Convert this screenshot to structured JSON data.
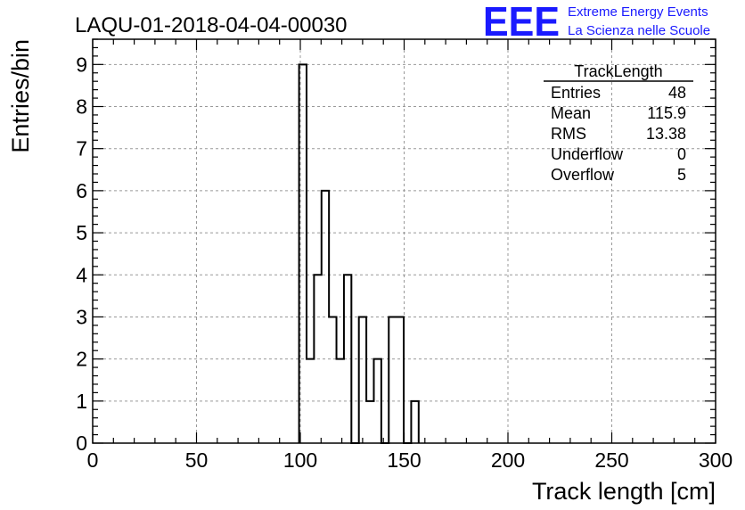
{
  "header": {
    "run_title": "LAQU-01-2018-04-04-00030",
    "logo_text": "EEE",
    "logo_line1": "Extreme Energy Events",
    "logo_line2": "La Scienza nelle Scuole",
    "brand_color": "#1a1aff"
  },
  "stats_box": {
    "title": "TrackLength",
    "rows": [
      {
        "label": "Entries",
        "value": "48"
      },
      {
        "label": "Mean",
        "value": "115.9"
      },
      {
        "label": "RMS",
        "value": "13.38"
      },
      {
        "label": "Underflow",
        "value": "0"
      },
      {
        "label": "Overflow",
        "value": "5"
      }
    ]
  },
  "chart_data": {
    "type": "bar",
    "histogram": true,
    "xlabel": "Track length [cm]",
    "ylabel": "Entries/bin",
    "xlim": [
      0,
      300
    ],
    "ylim": [
      0,
      9.6
    ],
    "grid": true,
    "x_ticks": [
      0,
      50,
      100,
      150,
      200,
      250,
      300
    ],
    "y_ticks": [
      0,
      1,
      2,
      3,
      4,
      5,
      6,
      7,
      8,
      9
    ],
    "bin_width": 3.6,
    "bins": [
      {
        "x0": 99.4,
        "x1": 103.0,
        "value": 9
      },
      {
        "x0": 103.0,
        "x1": 106.6,
        "value": 2
      },
      {
        "x0": 106.6,
        "x1": 110.2,
        "value": 4
      },
      {
        "x0": 110.2,
        "x1": 113.8,
        "value": 6
      },
      {
        "x0": 113.8,
        "x1": 117.4,
        "value": 3
      },
      {
        "x0": 117.4,
        "x1": 121.0,
        "value": 2
      },
      {
        "x0": 121.0,
        "x1": 124.6,
        "value": 4
      },
      {
        "x0": 124.6,
        "x1": 128.2,
        "value": 0
      },
      {
        "x0": 128.2,
        "x1": 131.8,
        "value": 3
      },
      {
        "x0": 131.8,
        "x1": 135.4,
        "value": 1
      },
      {
        "x0": 135.4,
        "x1": 139.0,
        "value": 2
      },
      {
        "x0": 139.0,
        "x1": 142.6,
        "value": 0
      },
      {
        "x0": 142.6,
        "x1": 146.2,
        "value": 3
      },
      {
        "x0": 146.2,
        "x1": 149.8,
        "value": 3
      },
      {
        "x0": 149.8,
        "x1": 153.4,
        "value": 0
      },
      {
        "x0": 153.4,
        "x1": 157.0,
        "value": 1
      }
    ]
  }
}
